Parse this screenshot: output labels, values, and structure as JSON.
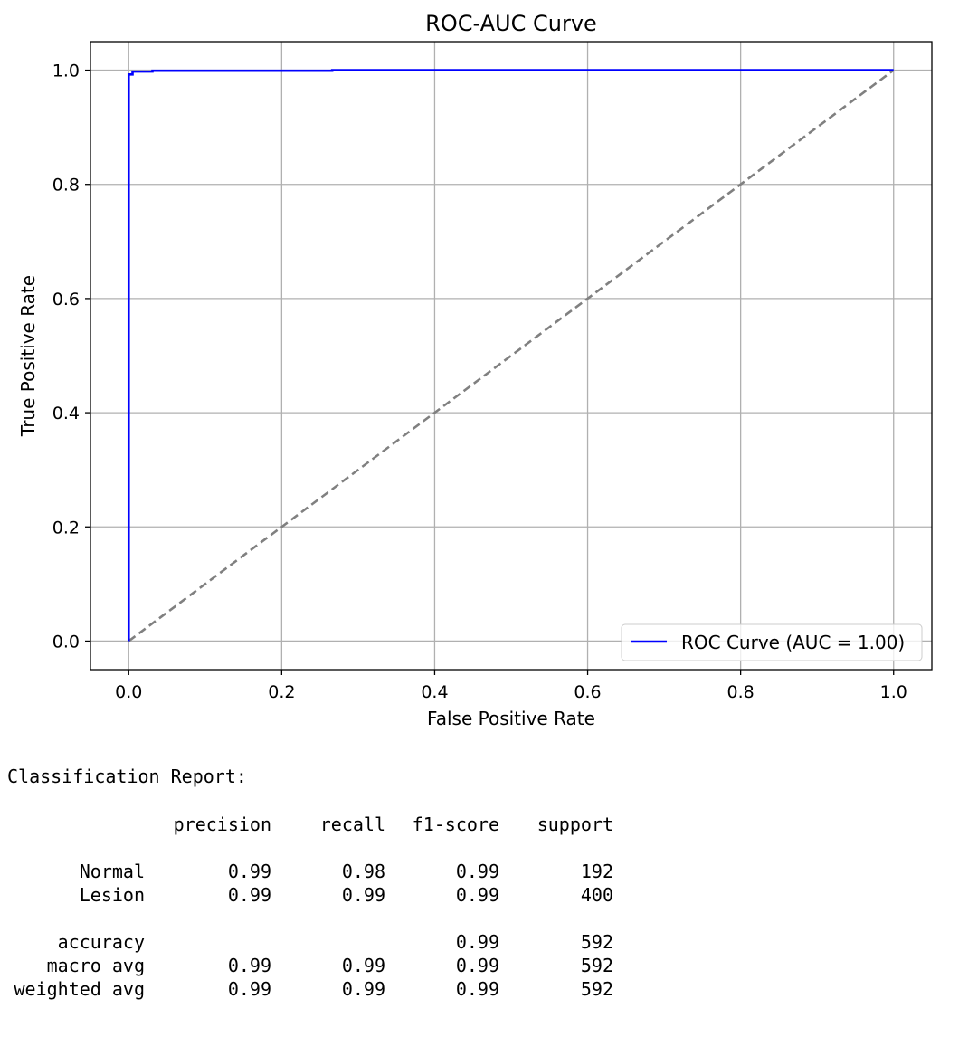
{
  "chart_data": {
    "type": "line",
    "title": "ROC-AUC Curve",
    "xlabel": "False Positive Rate",
    "ylabel": "True Positive Rate",
    "xlim": [
      -0.05,
      1.05
    ],
    "ylim": [
      -0.05,
      1.05
    ],
    "xticks": [
      "0.0",
      "0.2",
      "0.4",
      "0.6",
      "0.8",
      "1.0"
    ],
    "yticks": [
      "0.0",
      "0.2",
      "0.4",
      "0.6",
      "0.8",
      "1.0"
    ],
    "grid": true,
    "legend_position": "lower right",
    "series": [
      {
        "name": "ROC Curve (AUC = 1.00)",
        "color": "#0000ff",
        "style": "solid",
        "x": [
          0.0,
          0.0,
          0.005,
          0.005,
          0.031,
          0.031,
          0.266,
          0.266,
          1.0
        ],
        "y": [
          0.0,
          0.9925,
          0.9925,
          0.9975,
          0.9975,
          0.999,
          0.999,
          1.0,
          1.0
        ]
      },
      {
        "color": "#808080",
        "style": "dashed",
        "x": [
          0.0,
          1.0
        ],
        "y": [
          0.0,
          1.0
        ]
      }
    ]
  },
  "report": {
    "title": "Classification Report:",
    "headers": [
      "precision",
      "recall",
      "f1-score",
      "support"
    ],
    "class_rows": [
      {
        "label": "Normal",
        "precision": "0.99",
        "recall": "0.98",
        "f1": "0.99",
        "support": "192"
      },
      {
        "label": "Lesion",
        "precision": "0.99",
        "recall": "0.99",
        "f1": "0.99",
        "support": "400"
      }
    ],
    "accuracy_row": {
      "label": "accuracy",
      "f1": "0.99",
      "support": "592"
    },
    "avg_rows": [
      {
        "label": "macro avg",
        "precision": "0.99",
        "recall": "0.99",
        "f1": "0.99",
        "support": "592"
      },
      {
        "label": "weighted avg",
        "precision": "0.99",
        "recall": "0.99",
        "f1": "0.99",
        "support": "592"
      }
    ]
  }
}
